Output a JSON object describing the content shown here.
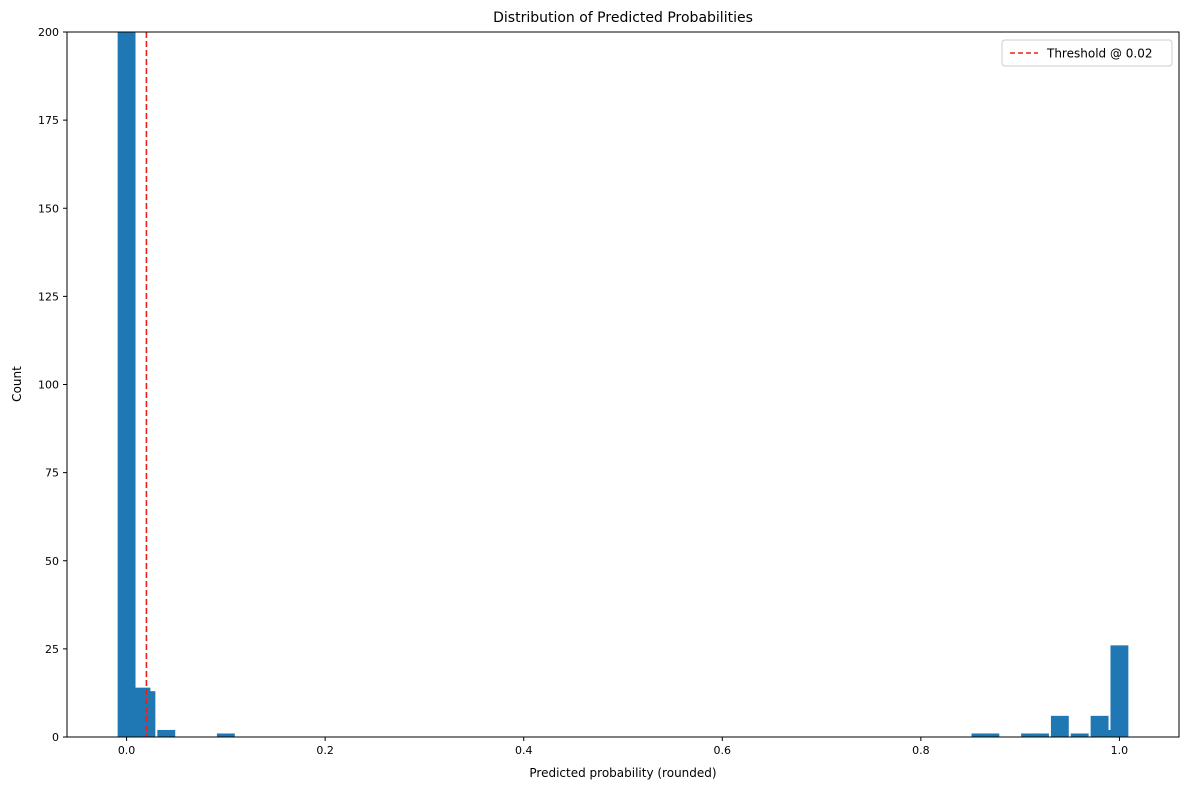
{
  "chart_data": {
    "type": "bar",
    "title": "Distribution of Predicted Probabilities",
    "xlabel": "Predicted probability (rounded)",
    "ylabel": "Count",
    "xlim": [
      -0.06,
      1.06
    ],
    "ylim": [
      0,
      200
    ],
    "xticks": [
      0.0,
      0.2,
      0.4,
      0.6,
      0.8,
      1.0
    ],
    "xtick_labels": [
      "0.0",
      "0.2",
      "0.4",
      "0.6",
      "0.8",
      "1.0"
    ],
    "yticks": [
      0,
      25,
      50,
      75,
      100,
      125,
      150,
      175,
      200
    ],
    "ytick_labels": [
      "0",
      "25",
      "50",
      "75",
      "100",
      "125",
      "150",
      "175",
      "200"
    ],
    "bar_width": 0.018,
    "bars": [
      {
        "x": 0.0,
        "value": 200
      },
      {
        "x": 0.015,
        "value": 14
      },
      {
        "x": 0.02,
        "value": 13
      },
      {
        "x": 0.04,
        "value": 2
      },
      {
        "x": 0.1,
        "value": 1
      },
      {
        "x": 0.86,
        "value": 1
      },
      {
        "x": 0.87,
        "value": 1
      },
      {
        "x": 0.91,
        "value": 1
      },
      {
        "x": 0.92,
        "value": 1
      },
      {
        "x": 0.94,
        "value": 6
      },
      {
        "x": 0.96,
        "value": 1
      },
      {
        "x": 0.98,
        "value": 6
      },
      {
        "x": 0.99,
        "value": 2
      },
      {
        "x": 1.0,
        "value": 26
      }
    ],
    "threshold": {
      "x": 0.02,
      "label": "Threshold @ 0.02",
      "color": "#e8221b",
      "style": "dashed"
    },
    "bar_color": "#1f77b4",
    "legend_position": "top-right",
    "grid": false
  }
}
